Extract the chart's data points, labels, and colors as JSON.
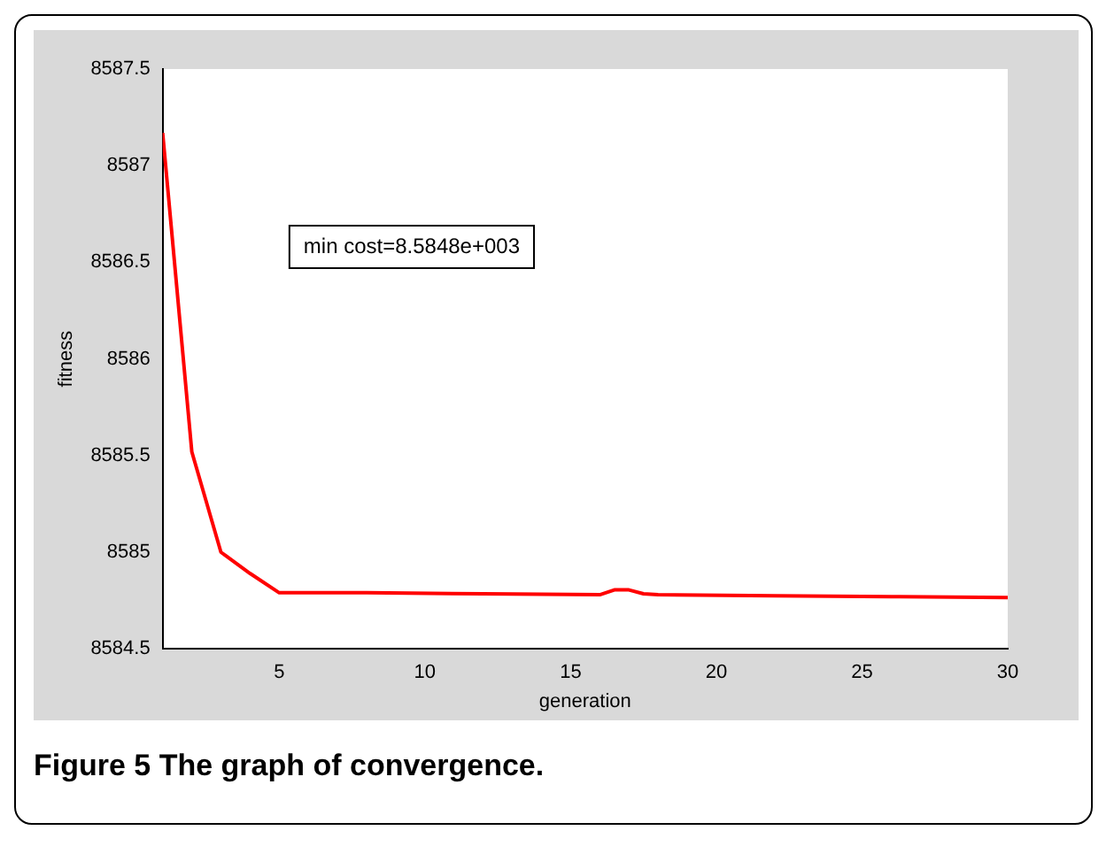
{
  "chart_data": {
    "type": "line",
    "xlabel": "generation",
    "ylabel": "fitness",
    "x": [
      1,
      2,
      3,
      4,
      5,
      8,
      12,
      16,
      16.5,
      17,
      17.5,
      18,
      22,
      26,
      30
    ],
    "series": [
      {
        "color": "#ff0000",
        "values": [
          8587.17,
          8585.52,
          8585.0,
          8584.89,
          8584.79,
          8584.79,
          8584.785,
          8584.78,
          8584.805,
          8584.805,
          8584.785,
          8584.78,
          8584.775,
          8584.77,
          8584.765
        ]
      }
    ],
    "xlim": [
      1,
      30
    ],
    "xticks": [
      5,
      10,
      15,
      20,
      25,
      30
    ],
    "ylim": [
      8584.5,
      8587.5
    ],
    "yticks": [
      8584.5,
      8585,
      8585.5,
      8586,
      8586.5,
      8587,
      8587.5
    ],
    "grid": false,
    "legend": false,
    "marker": "none",
    "line_style": "solid",
    "annotations": [
      "min cost=8.5848e+003",
      "Figure 5 The graph of convergence."
    ]
  }
}
